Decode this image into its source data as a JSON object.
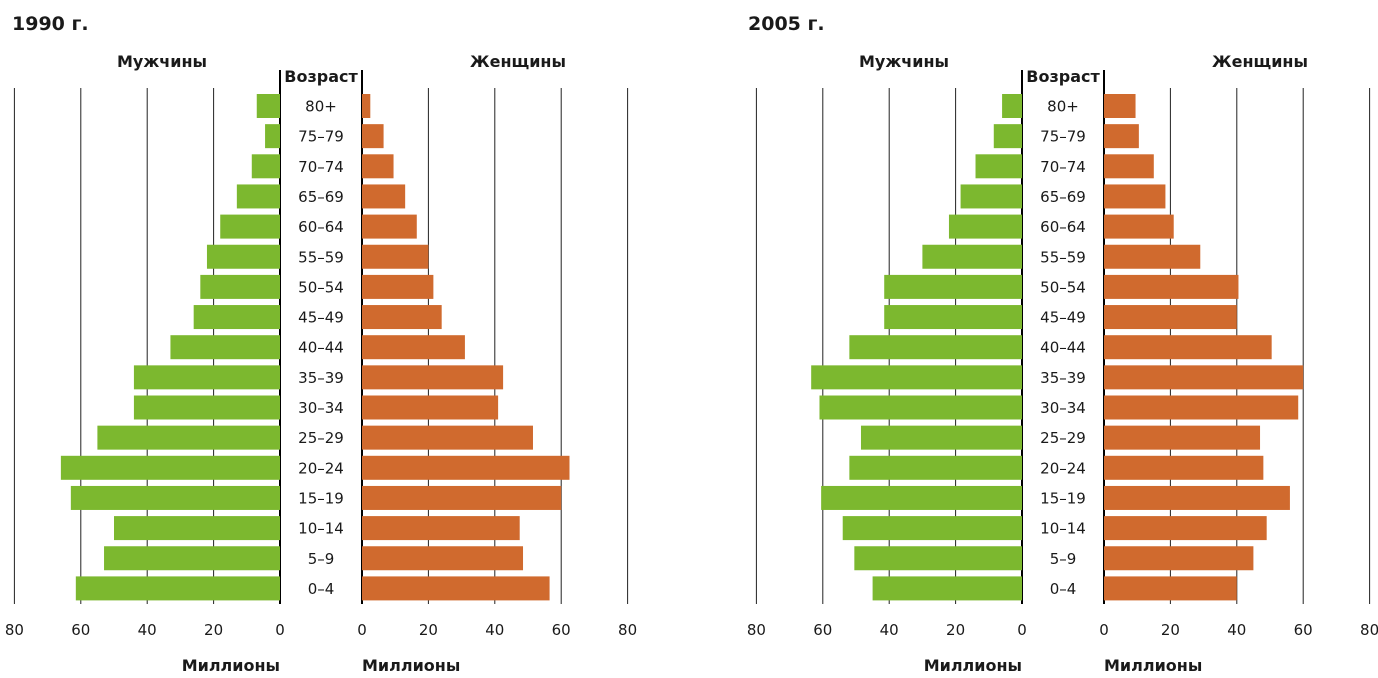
{
  "colors": {
    "male": "#7cb82f",
    "female": "#d06a2e",
    "grid": "#222222"
  },
  "chart_data": [
    {
      "type": "bar",
      "orientation": "horizontal-pyramid",
      "title": "1990 г.",
      "age_header": "Возраст",
      "categories": [
        "80+",
        "75–79",
        "70–74",
        "65–69",
        "60–64",
        "55–59",
        "50–54",
        "45–49",
        "40–44",
        "35–39",
        "30–34",
        "25–29",
        "20–24",
        "15–19",
        "10–14",
        "5–9",
        "0–4"
      ],
      "series": [
        {
          "name": "Мужчины",
          "values": [
            7,
            4.5,
            8.5,
            13,
            18,
            22,
            24,
            26,
            33,
            44,
            44,
            55,
            66,
            63,
            50,
            53,
            61.5
          ]
        },
        {
          "name": "Женщины",
          "values": [
            2.5,
            6.5,
            9.5,
            13,
            16.5,
            20,
            21.5,
            24,
            31,
            42.5,
            41,
            51.5,
            62.5,
            60,
            47.5,
            48.5,
            56.5
          ]
        }
      ],
      "xlim": [
        0,
        80
      ],
      "ticks": [
        80,
        60,
        40,
        20,
        0
      ],
      "xlabel_left": "Миллионы",
      "xlabel_right": "Миллионы",
      "grid": true
    },
    {
      "type": "bar",
      "orientation": "horizontal-pyramid",
      "title": "2005 г.",
      "age_header": "Возраст",
      "categories": [
        "80+",
        "75–79",
        "70–74",
        "65–69",
        "60–64",
        "55–59",
        "50–54",
        "45–49",
        "40–44",
        "35–39",
        "30–34",
        "25–29",
        "20–24",
        "15–19",
        "10–14",
        "5–9",
        "0–4"
      ],
      "series": [
        {
          "name": "Мужчины",
          "values": [
            6,
            8.5,
            14,
            18.5,
            22,
            30,
            41.5,
            41.5,
            52,
            63.5,
            61,
            48.5,
            52,
            60.5,
            54,
            50.5,
            45
          ]
        },
        {
          "name": "Женщины",
          "values": [
            9.5,
            10.5,
            15,
            18.5,
            21,
            29,
            40.5,
            40,
            50.5,
            60,
            58.5,
            47,
            48,
            56,
            49,
            45,
            40
          ]
        }
      ],
      "xlim": [
        0,
        80
      ],
      "ticks": [
        80,
        60,
        40,
        20,
        0
      ],
      "xlabel_left": "Миллионы",
      "xlabel_right": "Миллионы",
      "grid": true
    }
  ]
}
